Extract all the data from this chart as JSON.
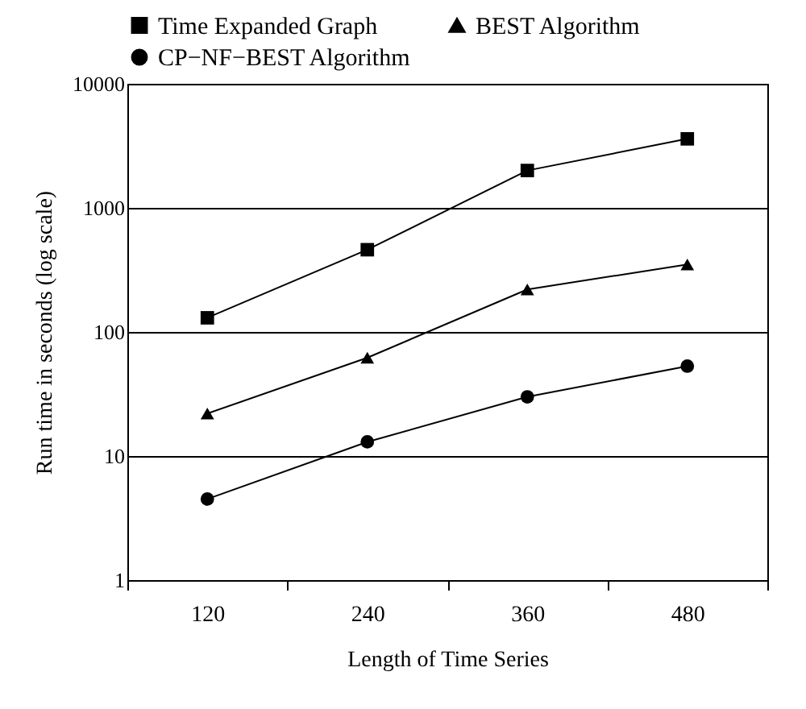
{
  "chart_data": {
    "type": "line",
    "xlabel": "Length of Time Series",
    "ylabel": "Run time in seconds (log scale)",
    "categories": [
      "120",
      "240",
      "360",
      "480"
    ],
    "series": [
      {
        "name": "Time Expanded Graph",
        "color": "#000000",
        "marker": "square",
        "values": [
          130,
          460,
          2000,
          3600
        ]
      },
      {
        "name": "BEST Algorithm",
        "color": "#000000",
        "marker": "triangle",
        "values": [
          22,
          62,
          220,
          350
        ]
      },
      {
        "name": "CP−NF−BEST Algorithm",
        "color": "#000000",
        "marker": "circle",
        "values": [
          4.5,
          13,
          30,
          53
        ]
      }
    ],
    "log": "y",
    "ylim": [
      1,
      10000
    ],
    "yticks": [
      1,
      10,
      100,
      1000,
      10000
    ],
    "grid": "y",
    "legend": "top",
    "line_style": "solid"
  }
}
